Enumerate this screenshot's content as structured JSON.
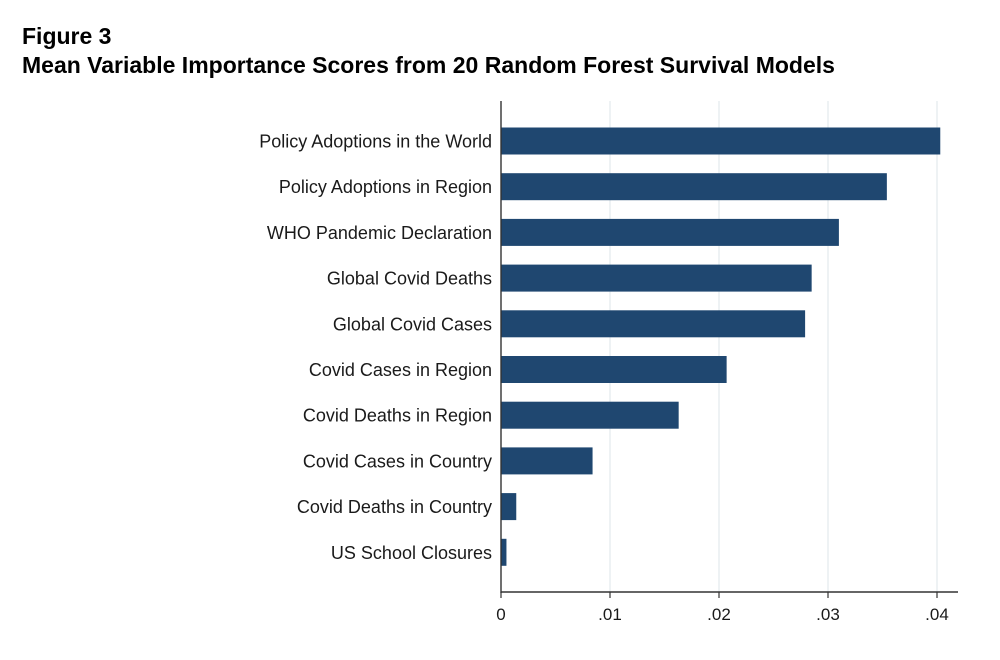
{
  "figure": {
    "number": "Figure 3",
    "title": "Mean Variable Importance Scores from 20 Random Forest Survival Models"
  },
  "chart_data": {
    "type": "bar",
    "orientation": "horizontal",
    "categories": [
      "Policy Adoptions in the World",
      "Policy Adoptions in Region",
      "WHO Pandemic Declaration",
      "Global Covid Deaths",
      "Global Covid Cases",
      "Covid Cases in Region",
      "Covid Deaths in Region",
      "Covid Cases in Country",
      "Covid Deaths in Country",
      "US School Closures"
    ],
    "values": [
      0.0403,
      0.0354,
      0.031,
      0.0285,
      0.0279,
      0.0207,
      0.0163,
      0.0084,
      0.0014,
      0.0005
    ],
    "xlim": [
      0,
      0.042
    ],
    "xticks": [
      0,
      0.01,
      0.02,
      0.03,
      0.04
    ],
    "xtick_labels": [
      "0",
      ".01",
      ".02",
      ".03",
      ".04"
    ],
    "xlabel": "",
    "ylabel": "",
    "grid": "vertical",
    "legend": "none",
    "colors": {
      "bar": "#1f4770",
      "grid": "#dde6ea",
      "axis": "#333333"
    }
  }
}
